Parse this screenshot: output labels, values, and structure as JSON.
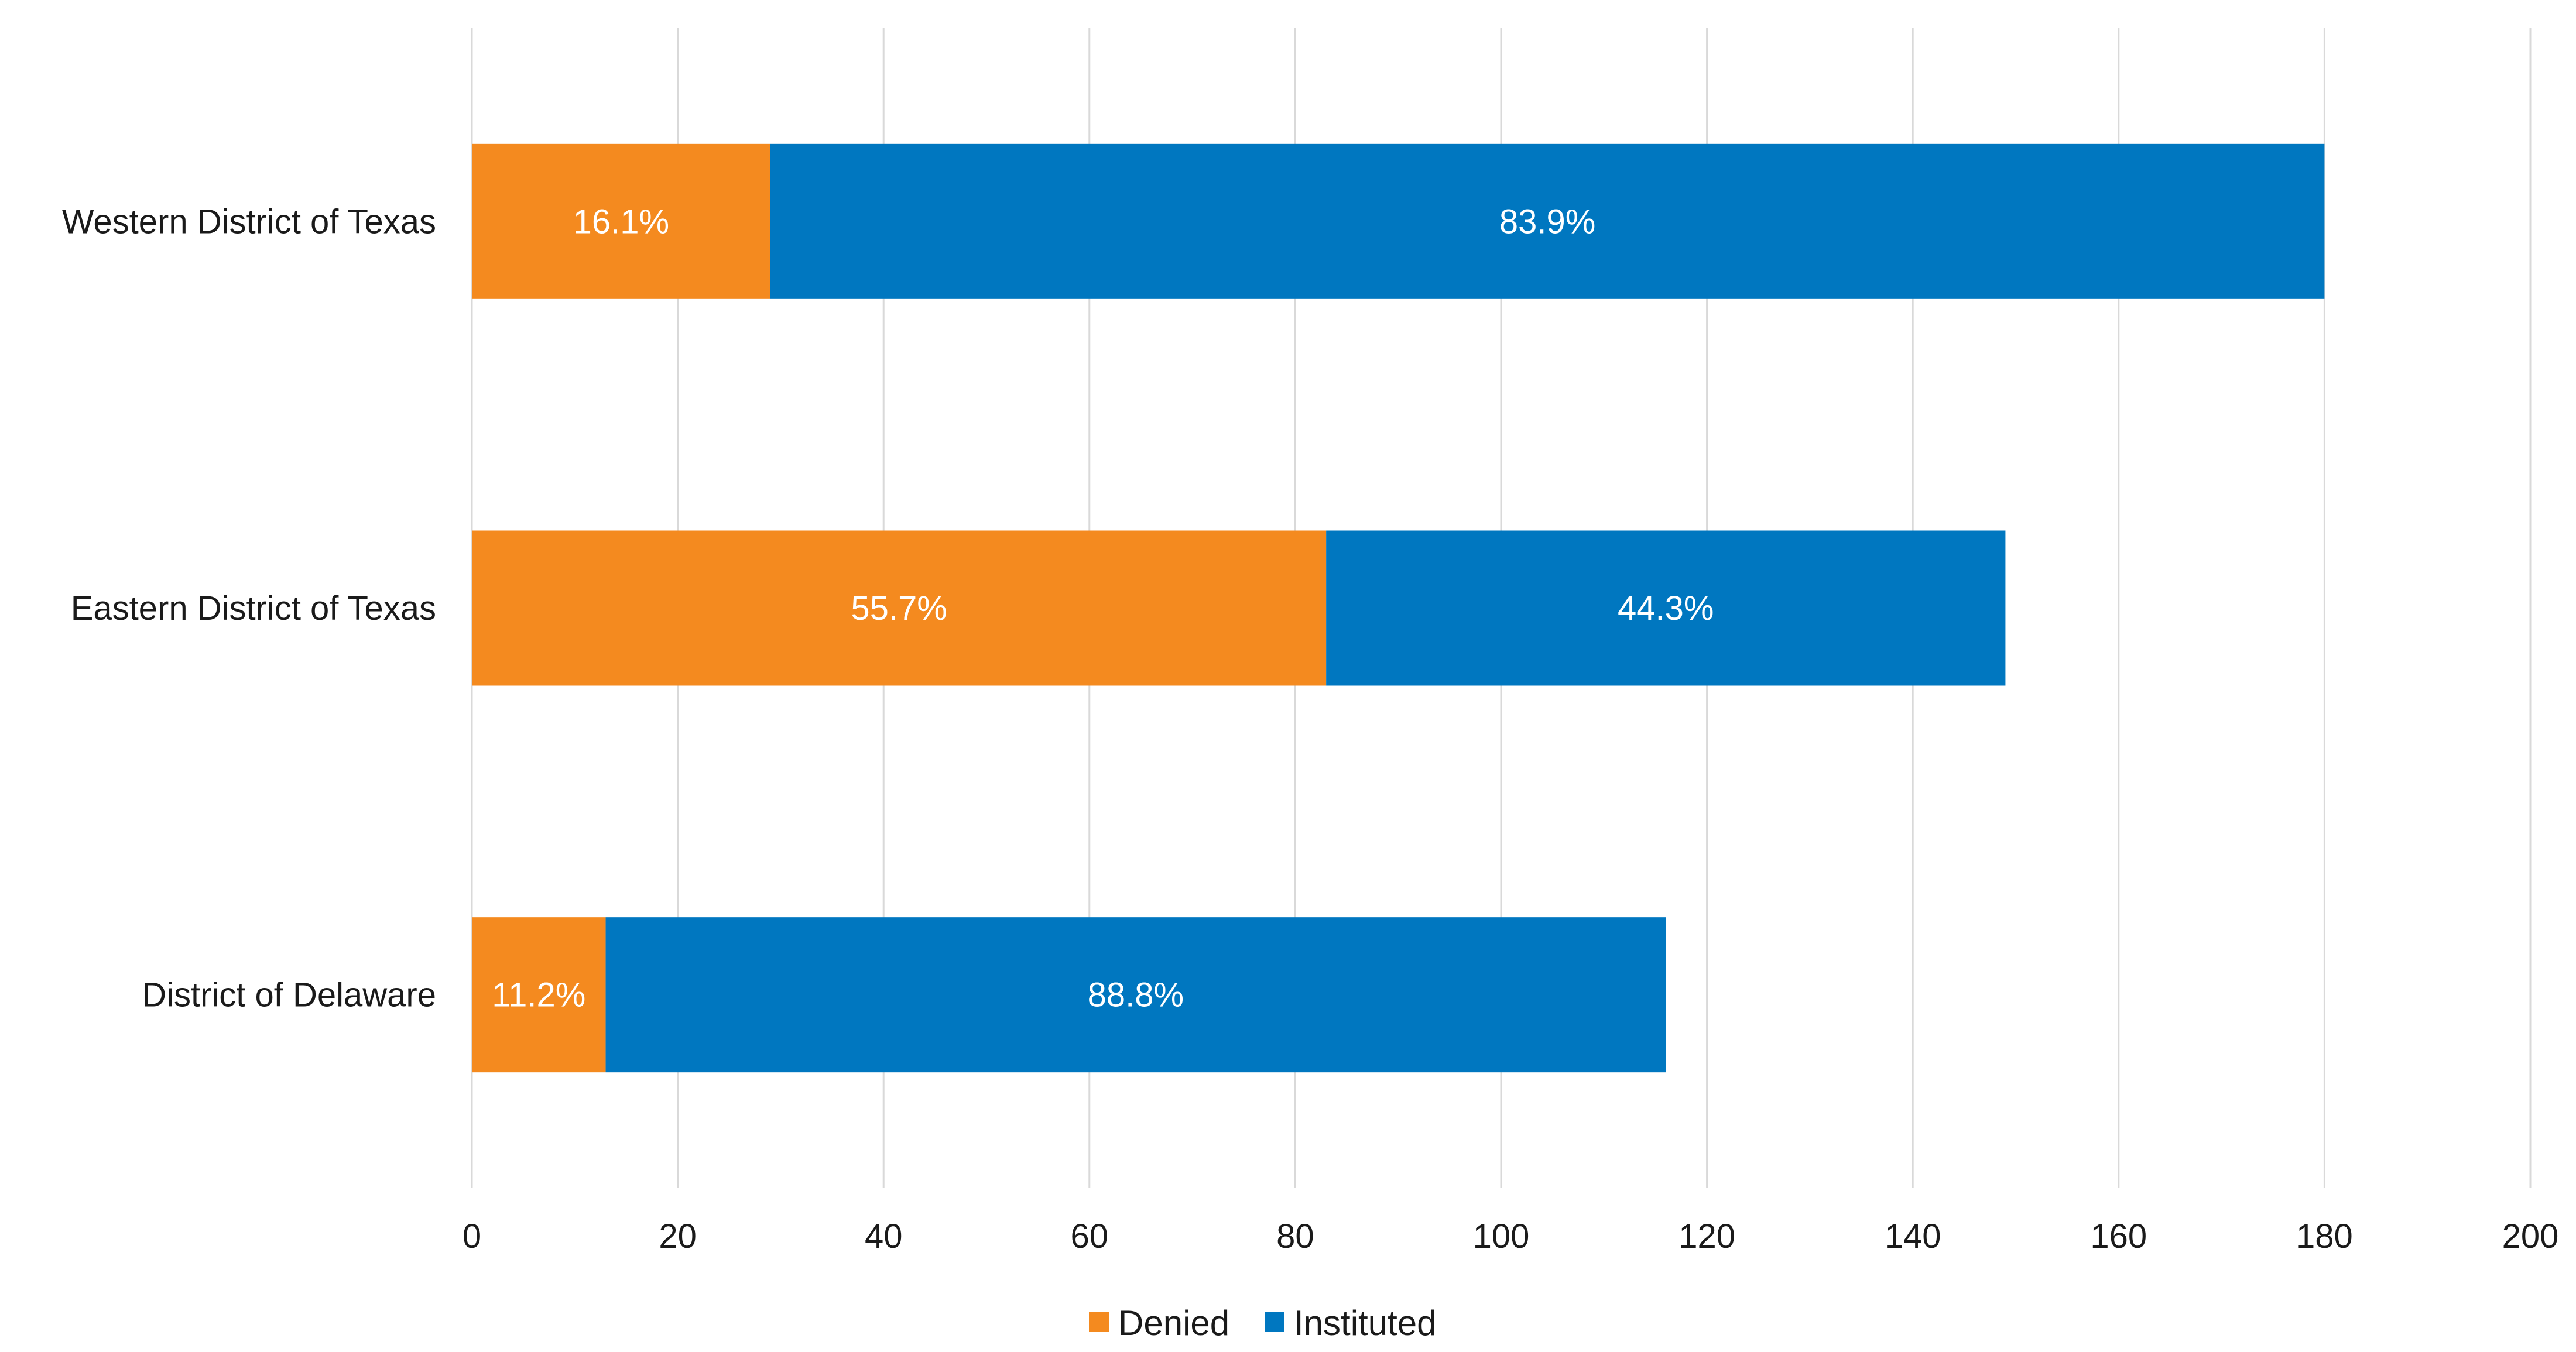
{
  "chart_data": {
    "type": "bar",
    "orientation": "horizontal",
    "stacked": true,
    "categories": [
      "Western District of Texas",
      "Eastern District of Texas",
      "District of Delaware"
    ],
    "series": [
      {
        "name": "Denied",
        "color": "#F48A1F",
        "values": [
          29,
          83,
          13
        ],
        "labels": [
          "16.1%",
          "55.7%",
          "11.2%"
        ]
      },
      {
        "name": "Instituted",
        "color": "#0077C0",
        "values": [
          151,
          66,
          103
        ],
        "labels": [
          "83.9%",
          "44.3%",
          "88.8%"
        ]
      }
    ],
    "xlim": [
      0,
      200
    ],
    "xticks": [
      0,
      20,
      40,
      60,
      80,
      100,
      120,
      140,
      160,
      180,
      200
    ],
    "grid": "vertical",
    "legend": "bottom-center",
    "title": "",
    "xlabel": "",
    "ylabel": ""
  }
}
